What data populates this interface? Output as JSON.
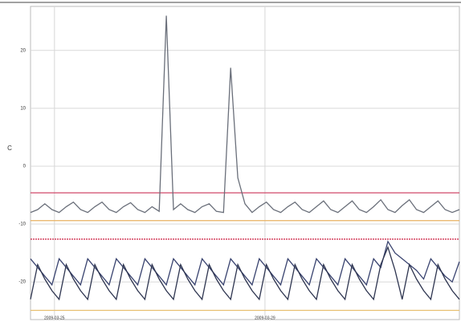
{
  "chart_data": {
    "type": "line",
    "ylabel": "C",
    "x": [
      0,
      2,
      4,
      6,
      8,
      10,
      12,
      14,
      16,
      18,
      20,
      22,
      24,
      26,
      28,
      30,
      32,
      34,
      36,
      38,
      40,
      42,
      44,
      46,
      48,
      50,
      52,
      54,
      56,
      58,
      60,
      62,
      64,
      66,
      68,
      70,
      72,
      74,
      76,
      78,
      80,
      82,
      84,
      86,
      88,
      90,
      92,
      94,
      96,
      98,
      100,
      102,
      104,
      106,
      108,
      110,
      112,
      114,
      116,
      118,
      120
    ],
    "xlim": [
      0,
      120
    ],
    "xticks": [
      {
        "value": 6.7,
        "label": "2009-03-25"
      },
      {
        "value": 65.6,
        "label": "2009-03-29"
      }
    ],
    "ylim": [
      -26.5,
      27.6
    ],
    "yticks": [
      -20,
      -10,
      0,
      10,
      20
    ],
    "grid": true,
    "series": [
      {
        "color": "#6a6f7a",
        "values": [
          -8,
          -7.5,
          -6.5,
          -7.5,
          -8,
          -7,
          -6.2,
          -7.5,
          -8,
          -7,
          -6.2,
          -7.5,
          -8,
          -7,
          -6.3,
          -7.5,
          -8,
          -7,
          -7.8,
          26,
          -7.5,
          -6.5,
          -7.5,
          -8,
          -7,
          -6.5,
          -7.8,
          -8,
          17,
          -2,
          -6.5,
          -8,
          -7,
          -6.2,
          -7.5,
          -8,
          -7,
          -6.2,
          -7.5,
          -8,
          -7,
          -6,
          -7.5,
          -8,
          -7,
          -6,
          -7.5,
          -8,
          -7,
          -5.8,
          -7.5,
          -8,
          -6.8,
          -5.8,
          -7.5,
          -8,
          -7,
          -6,
          -7.5,
          -8,
          -7.5
        ]
      },
      {
        "color": "#3a4470",
        "values": [
          -16,
          -17.5,
          -19,
          -20.5,
          -16,
          -17.5,
          -19,
          -20.5,
          -16,
          -17.5,
          -19,
          -20.5,
          -16,
          -17.5,
          -19,
          -20.5,
          -16,
          -17.5,
          -19,
          -20.5,
          -16,
          -17.5,
          -19,
          -20.5,
          -16,
          -17.5,
          -19,
          -20.5,
          -16,
          -17.5,
          -19,
          -20.5,
          -16,
          -17.5,
          -19,
          -20.5,
          -16,
          -17.5,
          -19,
          -20.5,
          -16,
          -17.5,
          -19,
          -20.5,
          -16,
          -17.5,
          -19,
          -20.5,
          -16,
          -17.5,
          -13,
          -15,
          -16,
          -17,
          -18,
          -19.5,
          -16,
          -17.5,
          -19,
          -20,
          -16.5
        ]
      },
      {
        "color": "#2e3550",
        "values": [
          -23,
          -17,
          -19.5,
          -21.5,
          -23,
          -17,
          -19.5,
          -21.5,
          -23,
          -17,
          -19.5,
          -21.5,
          -23,
          -17,
          -19.5,
          -21.5,
          -23,
          -17,
          -19.5,
          -21.5,
          -23,
          -17,
          -19.5,
          -21.5,
          -23,
          -17,
          -19.5,
          -21.5,
          -23,
          -17,
          -19.5,
          -21.5,
          -23,
          -17,
          -19.5,
          -21.5,
          -23,
          -17,
          -19.5,
          -21.5,
          -23,
          -17,
          -19.5,
          -21.5,
          -23,
          -17,
          -19.5,
          -21.5,
          -23,
          -17,
          -14,
          -18,
          -23,
          -17,
          -19.5,
          -21.5,
          -23,
          -17,
          -19.5,
          -21.5,
          -23
        ]
      }
    ],
    "reference_lines": [
      {
        "value": -4.6,
        "color": "#d04868",
        "style": "solid"
      },
      {
        "value": -9.4,
        "color": "#e8b060",
        "style": "solid"
      },
      {
        "value": -12.6,
        "color": "#d03050",
        "style": "dashed"
      },
      {
        "value": -24.9,
        "color": "#e8c070",
        "style": "solid"
      }
    ]
  }
}
